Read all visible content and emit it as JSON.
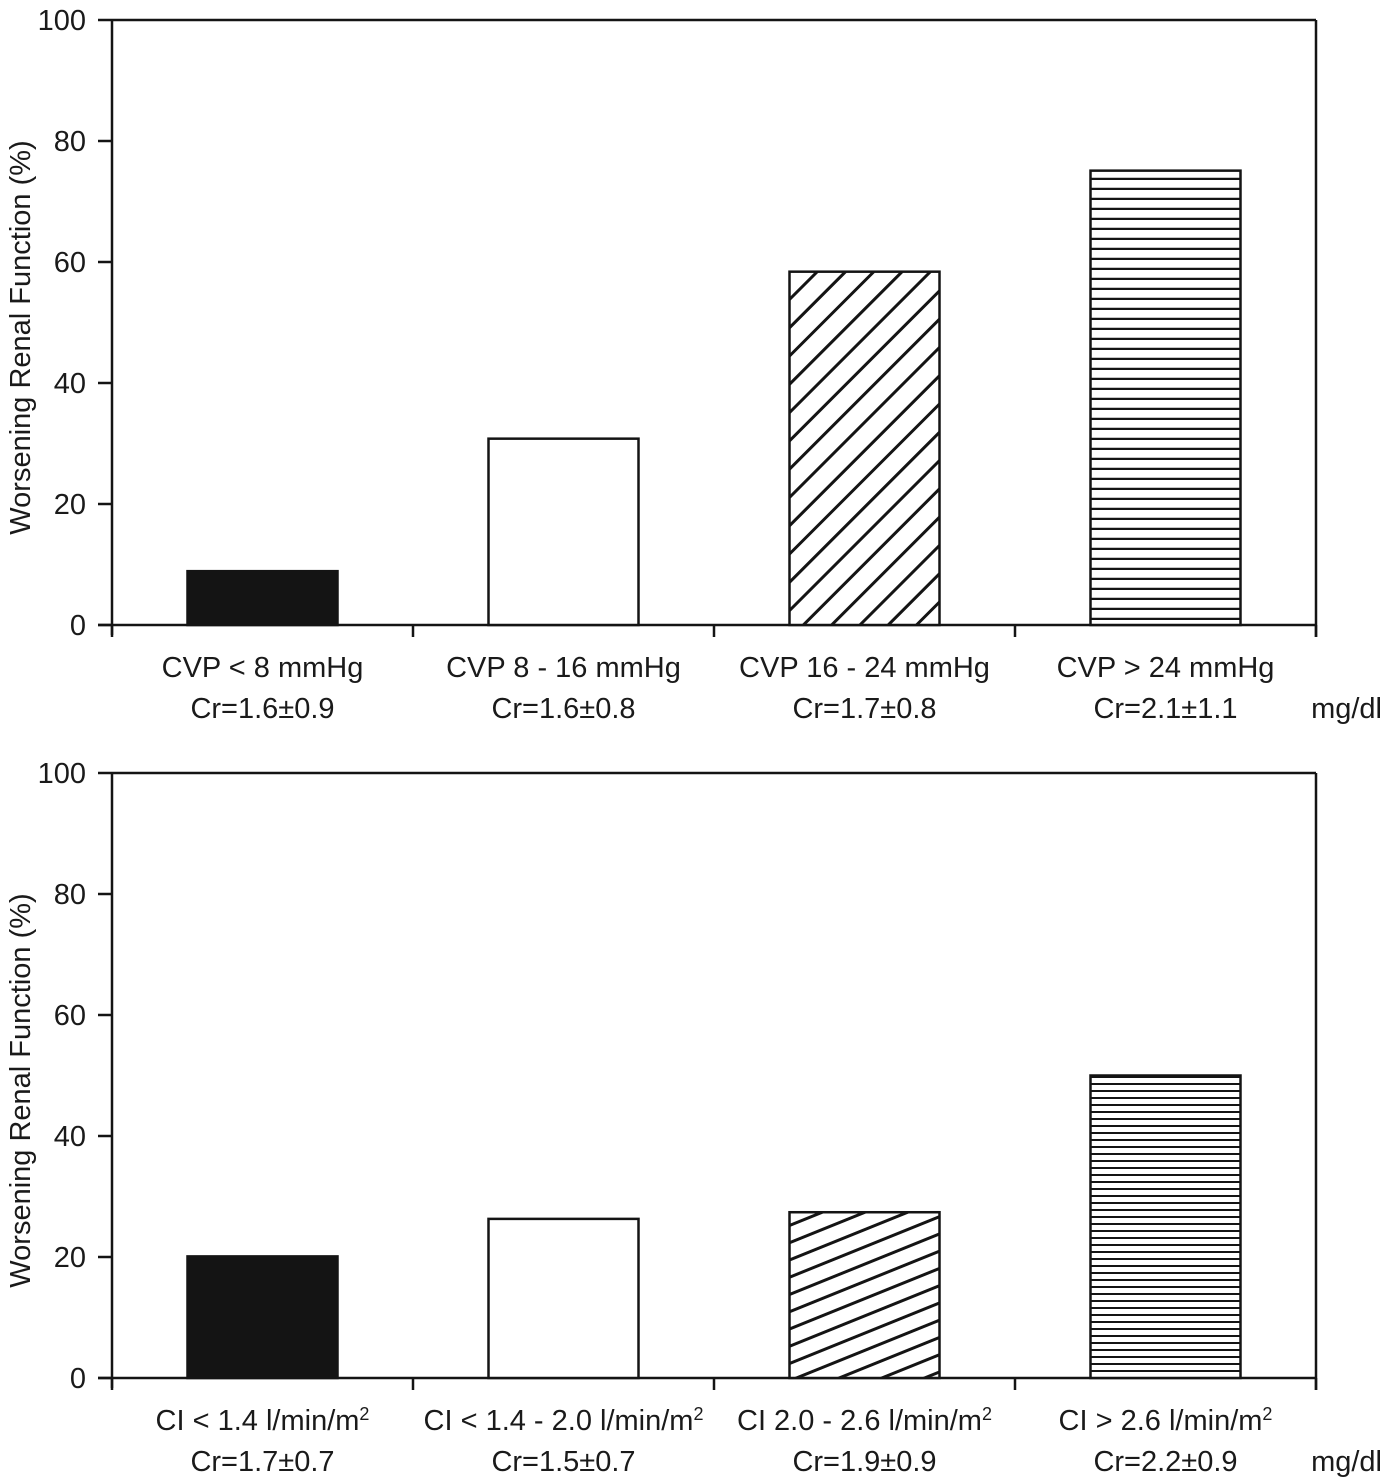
{
  "chart_data": [
    {
      "type": "bar",
      "title": "",
      "ylabel": "Worsening Renal Function (%)",
      "xlabel": "",
      "unit_note": "mg/dl",
      "ylim": [
        0,
        100
      ],
      "yticks": [
        0,
        20,
        40,
        60,
        80,
        100
      ],
      "grid": false,
      "legend": "none",
      "categories": [
        {
          "line1": "CVP < 8 mmHg",
          "line2": "Cr=1.6±0.9"
        },
        {
          "line1": "CVP 8 - 16 mmHg",
          "line2": "Cr=1.6±0.8"
        },
        {
          "line1": "CVP 16 - 24 mmHg",
          "line2": "Cr=1.7±0.8"
        },
        {
          "line1": "CVP > 24 mmHg",
          "line2": "Cr=2.1±1.1"
        }
      ],
      "values": [
        8.9,
        30.8,
        58.4,
        75.1
      ],
      "fills": [
        "solid-black",
        "white",
        "diagonal-hatch",
        "horizontal-hatch"
      ]
    },
    {
      "type": "bar",
      "title": "",
      "ylabel": "Worsening Renal Function (%)",
      "xlabel": "",
      "unit_note": "mg/dl",
      "ylim": [
        0,
        100
      ],
      "yticks": [
        0,
        20,
        40,
        60,
        80,
        100
      ],
      "grid": false,
      "legend": "none",
      "categories": [
        {
          "line1": "CI < 1.4 l/min/m",
          "sup": "2",
          "line2": "Cr=1.7±0.7"
        },
        {
          "line1": "CI < 1.4 - 2.0 l/min/m",
          "sup": "2",
          "line2": "Cr=1.5±0.7"
        },
        {
          "line1": "CI 2.0 - 2.6 l/min/m",
          "sup": "2",
          "line2": "Cr=1.9±0.9"
        },
        {
          "line1": "CI > 2.6 l/min/m",
          "sup": "2",
          "line2": "Cr=2.2±0.9"
        }
      ],
      "values": [
        20.1,
        26.3,
        27.4,
        50.0
      ],
      "fills": [
        "solid-black",
        "white",
        "diagonal-hatch",
        "horizontal-hatch"
      ]
    }
  ],
  "colors": {
    "ink": "#141414",
    "background": "#ffffff"
  }
}
